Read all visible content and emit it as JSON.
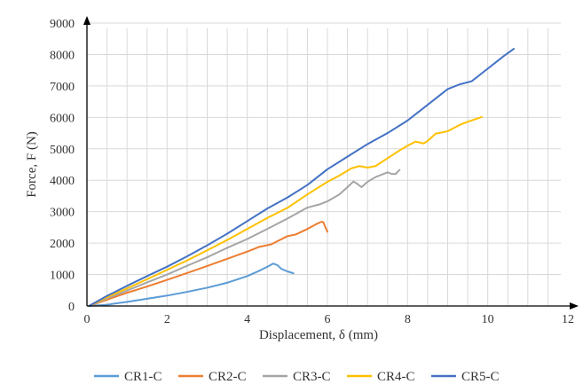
{
  "chart_data": {
    "type": "line",
    "title": "",
    "xlabel": "Displacement, δ (mm)",
    "ylabel": "Force, F (N)",
    "xlim": [
      0,
      12
    ],
    "ylim": [
      0,
      9000
    ],
    "xticks": [
      0,
      2,
      4,
      6,
      8,
      10,
      12
    ],
    "yticks": [
      0,
      1000,
      2000,
      3000,
      4000,
      5000,
      6000,
      7000,
      8000,
      9000
    ],
    "grid": true,
    "legend_position": "bottom",
    "series": [
      {
        "name": "CR1-C",
        "color": "#5b9bd5",
        "points": [
          [
            0.05,
            0
          ],
          [
            0.5,
            40
          ],
          [
            1,
            130
          ],
          [
            1.5,
            230
          ],
          [
            2,
            330
          ],
          [
            2.5,
            450
          ],
          [
            3,
            580
          ],
          [
            3.5,
            740
          ],
          [
            4,
            950
          ],
          [
            4.3,
            1120
          ],
          [
            4.55,
            1280
          ],
          [
            4.65,
            1350
          ],
          [
            4.75,
            1300
          ],
          [
            4.85,
            1180
          ],
          [
            5,
            1100
          ],
          [
            5.15,
            1040
          ]
        ]
      },
      {
        "name": "CR2-C",
        "color": "#ed7d31",
        "points": [
          [
            0.05,
            0
          ],
          [
            0.5,
            200
          ],
          [
            1,
            420
          ],
          [
            1.5,
            620
          ],
          [
            2,
            830
          ],
          [
            2.5,
            1050
          ],
          [
            3,
            1270
          ],
          [
            3.5,
            1500
          ],
          [
            4,
            1730
          ],
          [
            4.3,
            1880
          ],
          [
            4.6,
            1960
          ],
          [
            4.8,
            2090
          ],
          [
            5,
            2220
          ],
          [
            5.2,
            2270
          ],
          [
            5.5,
            2450
          ],
          [
            5.7,
            2590
          ],
          [
            5.85,
            2680
          ],
          [
            5.9,
            2660
          ],
          [
            5.95,
            2500
          ],
          [
            6,
            2360
          ]
        ]
      },
      {
        "name": "CR3-C",
        "color": "#a5a5a5",
        "points": [
          [
            0.05,
            0
          ],
          [
            0.5,
            240
          ],
          [
            1,
            490
          ],
          [
            1.5,
            750
          ],
          [
            2,
            1000
          ],
          [
            2.5,
            1280
          ],
          [
            3,
            1550
          ],
          [
            3.5,
            1850
          ],
          [
            4,
            2130
          ],
          [
            4.5,
            2450
          ],
          [
            5,
            2780
          ],
          [
            5.5,
            3130
          ],
          [
            5.8,
            3230
          ],
          [
            6,
            3330
          ],
          [
            6.3,
            3550
          ],
          [
            6.5,
            3780
          ],
          [
            6.65,
            3960
          ],
          [
            6.75,
            3880
          ],
          [
            6.85,
            3780
          ],
          [
            7,
            3950
          ],
          [
            7.2,
            4100
          ],
          [
            7.5,
            4250
          ],
          [
            7.6,
            4200
          ],
          [
            7.7,
            4200
          ],
          [
            7.8,
            4330
          ]
        ]
      },
      {
        "name": "CR4-C",
        "color": "#ffc000",
        "points": [
          [
            0.05,
            0
          ],
          [
            0.5,
            280
          ],
          [
            1,
            560
          ],
          [
            1.5,
            850
          ],
          [
            2,
            1150
          ],
          [
            2.5,
            1450
          ],
          [
            3,
            1770
          ],
          [
            3.5,
            2100
          ],
          [
            4,
            2450
          ],
          [
            4.5,
            2800
          ],
          [
            5,
            3120
          ],
          [
            5.5,
            3550
          ],
          [
            6,
            3950
          ],
          [
            6.3,
            4150
          ],
          [
            6.6,
            4380
          ],
          [
            6.8,
            4450
          ],
          [
            7,
            4400
          ],
          [
            7.2,
            4450
          ],
          [
            7.5,
            4700
          ],
          [
            7.8,
            4950
          ],
          [
            8,
            5100
          ],
          [
            8.2,
            5230
          ],
          [
            8.4,
            5170
          ],
          [
            8.5,
            5250
          ],
          [
            8.7,
            5480
          ],
          [
            9,
            5560
          ],
          [
            9.3,
            5760
          ],
          [
            9.5,
            5860
          ],
          [
            9.85,
            6010
          ]
        ]
      },
      {
        "name": "CR5-C",
        "color": "#4472c4",
        "points": [
          [
            0.05,
            0
          ],
          [
            0.5,
            320
          ],
          [
            1,
            640
          ],
          [
            1.5,
            950
          ],
          [
            2,
            1250
          ],
          [
            2.5,
            1580
          ],
          [
            3,
            1930
          ],
          [
            3.5,
            2300
          ],
          [
            4,
            2700
          ],
          [
            4.5,
            3100
          ],
          [
            5,
            3450
          ],
          [
            5.5,
            3850
          ],
          [
            6,
            4350
          ],
          [
            6.5,
            4750
          ],
          [
            7,
            5150
          ],
          [
            7.5,
            5500
          ],
          [
            8,
            5900
          ],
          [
            8.5,
            6400
          ],
          [
            9,
            6900
          ],
          [
            9.3,
            7050
          ],
          [
            9.6,
            7150
          ],
          [
            9.8,
            7350
          ],
          [
            10,
            7550
          ],
          [
            10.2,
            7750
          ],
          [
            10.4,
            7950
          ],
          [
            10.65,
            8180
          ]
        ]
      }
    ]
  }
}
